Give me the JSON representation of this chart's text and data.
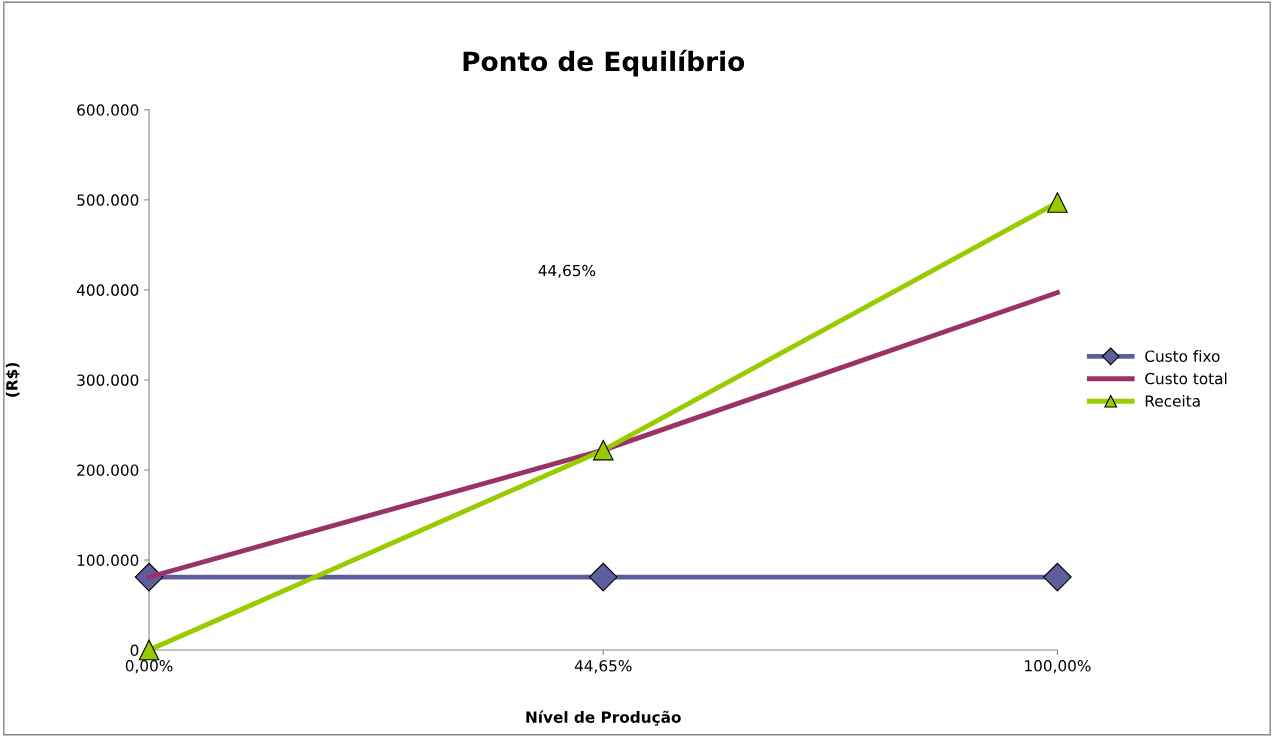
{
  "chart_data": {
    "type": "line",
    "title": "Ponto de Equilíbrio",
    "xlabel": "Nível de Produção",
    "ylabel": "(R$)",
    "categories": [
      "0,00%",
      "44,65%",
      "100,00%"
    ],
    "series": [
      {
        "name": "Custo fixo",
        "color": "#5e5e9c",
        "marker": "diamond",
        "values": [
          81000,
          81000,
          81000
        ]
      },
      {
        "name": "Custo total",
        "color": "#993366",
        "marker": "none",
        "values": [
          81000,
          222000,
          397000
        ]
      },
      {
        "name": "Receita",
        "color": "#99cc00",
        "marker": "triangle",
        "values": [
          0,
          222000,
          497000
        ]
      }
    ],
    "ylim": [
      0,
      600000
    ],
    "yticks": [
      {
        "value": 0,
        "label": "0"
      },
      {
        "value": 100000,
        "label": "100.000"
      },
      {
        "value": 200000,
        "label": "200.000"
      },
      {
        "value": 300000,
        "label": "300.000"
      },
      {
        "value": 400000,
        "label": "400.000"
      },
      {
        "value": 500000,
        "label": "500.000"
      },
      {
        "value": 600000,
        "label": "600.000"
      }
    ],
    "annotations": [
      "44,65%"
    ],
    "grid": false,
    "legend": "right"
  }
}
